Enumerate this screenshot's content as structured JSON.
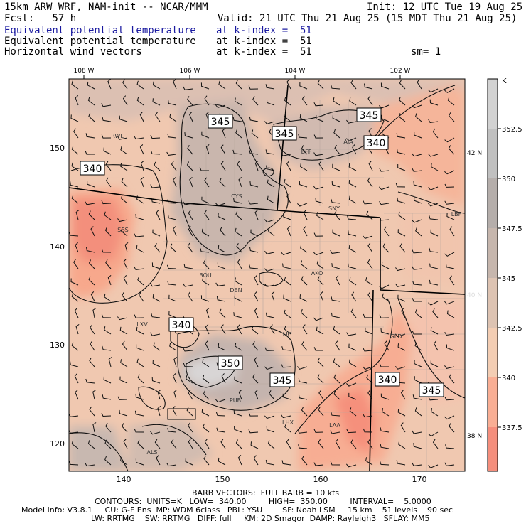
{
  "header": {
    "model": "15km ARW WRF, NAM-init -- NCAR/MMM",
    "init": "Init: 12 UTC Tue 19 Aug 25",
    "fcst": "Fcst:   57 h",
    "valid": "Valid: 21 UTC Thu 21 Aug 25 (15 MDT Thu 21 Aug 25)",
    "fields": [
      {
        "name": "Equivalent potential temperature",
        "level": "at k-index =  51",
        "color": "#1a1aa0"
      },
      {
        "name": "Equivalent potential temperature",
        "level": "at k-index =  51",
        "color": "#000000"
      },
      {
        "name": "Horizontal wind vectors",
        "level": "at k-index =  51",
        "color": "#000000"
      }
    ],
    "smoothing": "sm= 1"
  },
  "map": {
    "top_lon_labels": [
      "108 W",
      "106 W",
      "104 W",
      "102 W"
    ],
    "left_grid_labels": [
      "150",
      "140",
      "130",
      "120"
    ],
    "bottom_grid_labels": [
      "140",
      "150",
      "160",
      "170"
    ],
    "right_lat_labels": [
      {
        "text": "42 N",
        "color": "#000000"
      },
      {
        "text": "40 N",
        "color": "#dddddd"
      },
      {
        "text": "38 N",
        "color": "#000000"
      }
    ],
    "stations": [
      "RWL",
      "BFF",
      "AIA",
      "CYS",
      "SNY",
      "LBF",
      "SBS",
      "BOU",
      "AKO",
      "DEN",
      "LXV",
      "LIC",
      "GLD",
      "PUB",
      "LHX",
      "LAA",
      "ALS"
    ],
    "contour_labels": [
      "345",
      "345",
      "345",
      "340",
      "340",
      "350",
      "345",
      "340",
      "345"
    ]
  },
  "colorbar": {
    "unit": "K",
    "ticks": [
      "352.5",
      "350",
      "347.5",
      "345",
      "342.5",
      "340",
      "337.5"
    ],
    "colors": [
      "#d2d2d2",
      "#c0c0c0",
      "#b5aeab",
      "#c6b6ad",
      "#ddc3b2",
      "#f3cdb3",
      "#f9ae94",
      "#f58e7c"
    ]
  },
  "footer": {
    "line1": "BARB VECTORS:  FULL BARB = 10 kts",
    "line2": "CONTOURS:  UNITS=K   LOW=  340.00         HIGH=  350.00         INTERVAL=    5.0000",
    "line3": "Model Info: V3.8.1     CU: G-F Ens  MP: WDM 6class   PBL: YSU        SF: Noah LSM     15 km    51 levels    90 sec",
    "line4": "LW: RRTMG    SW: RRTMG   DIFF: full     KM: 2D Smagor  DAMP: Rayleigh3   SFLAY: MM5"
  }
}
